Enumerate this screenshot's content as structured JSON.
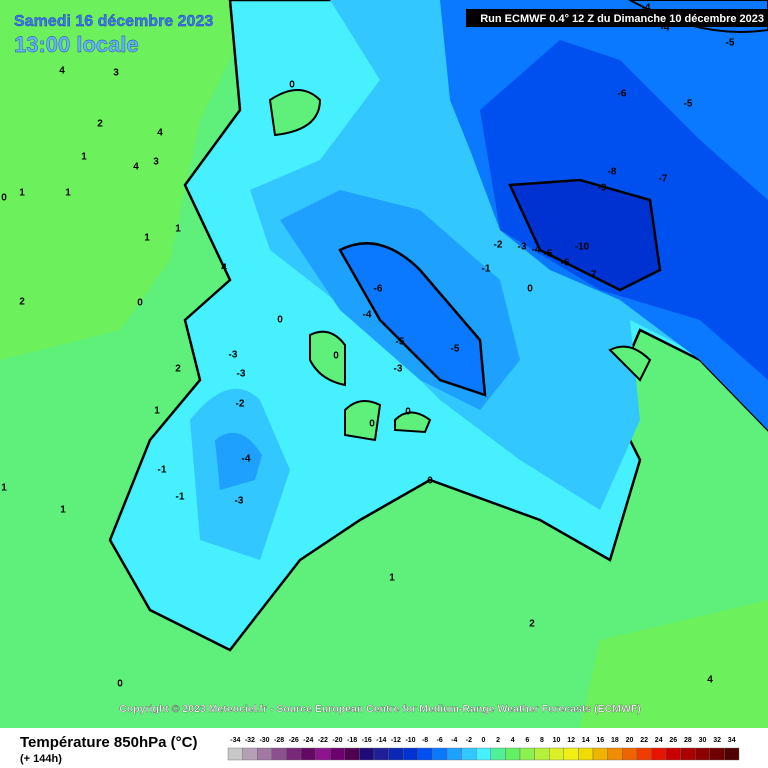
{
  "header": {
    "date": "Samedi 16 décembre 2023",
    "time": "13:00 locale",
    "run": "Run ECMWF 0.4° 12 Z du Dimanche 10 décembre 2023"
  },
  "copyright": "Copyright © 2023 Meteociel.fr - Source European Centre for Medium-Range Weather Forecasts (ECMWF)",
  "legend": {
    "title": "Température 850hPa (°C)",
    "subtitle": "(+ 144h)",
    "scale": [
      {
        "label": "-34",
        "color": "#c8c8c8"
      },
      {
        "label": "-32",
        "color": "#b4a0b4"
      },
      {
        "label": "-30",
        "color": "#a078a0"
      },
      {
        "label": "-28",
        "color": "#8c508c"
      },
      {
        "label": "-26",
        "color": "#782878"
      },
      {
        "label": "-24",
        "color": "#640a64"
      },
      {
        "label": "-22",
        "color": "#8c148c"
      },
      {
        "label": "-20",
        "color": "#6e006e"
      },
      {
        "label": "-18",
        "color": "#500050"
      },
      {
        "label": "-16",
        "color": "#1e0a78"
      },
      {
        "label": "-14",
        "color": "#1e1e96"
      },
      {
        "label": "-12",
        "color": "#0a28b4"
      },
      {
        "label": "-10",
        "color": "#0032d2"
      },
      {
        "label": "-8",
        "color": "#0050f0"
      },
      {
        "label": "-6",
        "color": "#0a78ff"
      },
      {
        "label": "-4",
        "color": "#1ea0ff"
      },
      {
        "label": "-2",
        "color": "#32c8ff"
      },
      {
        "label": "0",
        "color": "#46f0ff"
      },
      {
        "label": "2",
        "color": "#50f096"
      },
      {
        "label": "4",
        "color": "#64f064"
      },
      {
        "label": "6",
        "color": "#8cf050"
      },
      {
        "label": "8",
        "color": "#b4f03c"
      },
      {
        "label": "10",
        "color": "#dcf028"
      },
      {
        "label": "12",
        "color": "#f0f014"
      },
      {
        "label": "14",
        "color": "#f0dc00"
      },
      {
        "label": "16",
        "color": "#f0b400"
      },
      {
        "label": "18",
        "color": "#f08c00"
      },
      {
        "label": "20",
        "color": "#f06400"
      },
      {
        "label": "22",
        "color": "#f03c00"
      },
      {
        "label": "24",
        "color": "#e61400"
      },
      {
        "label": "26",
        "color": "#c80000"
      },
      {
        "label": "28",
        "color": "#aa0000"
      },
      {
        "label": "30",
        "color": "#8c0000"
      },
      {
        "label": "32",
        "color": "#6e0000"
      },
      {
        "label": "34",
        "color": "#500000"
      }
    ]
  },
  "contour_labels": [
    "0",
    "4",
    "3",
    "2",
    "4",
    "1",
    "3",
    "4",
    "1",
    "1",
    "0",
    "1",
    "1",
    "4",
    "2",
    "0",
    "0",
    "-3",
    "-3",
    "-2",
    "2",
    "1",
    "-1",
    "-4",
    "-1",
    "-3",
    "1",
    "1",
    "0",
    "0",
    "0",
    "0",
    "1",
    "2",
    "4",
    "0",
    "-6",
    "-4",
    "-5",
    "-5",
    "-3",
    "-1",
    "-2",
    "-3",
    "-4",
    "-5",
    "-6",
    "-7",
    "-10",
    "-9",
    "-8",
    "-7",
    "-6",
    "-5",
    "-5",
    "-4",
    "-4",
    "0"
  ]
}
